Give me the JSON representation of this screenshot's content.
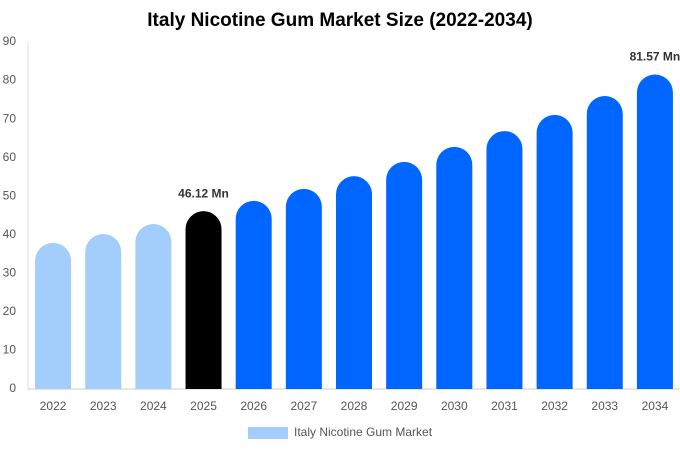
{
  "chart_data": {
    "type": "bar",
    "title": "Italy Nicotine Gum Market Size (2022-2034)",
    "categories": [
      "2022",
      "2023",
      "2024",
      "2025",
      "2026",
      "2027",
      "2028",
      "2029",
      "2030",
      "2031",
      "2032",
      "2033",
      "2034"
    ],
    "series": [
      {
        "name": "Italy Nicotine Gum Market",
        "color": "#a3cdfb",
        "colors": [
          "#a3cdfb",
          "#a3cdfb",
          "#a3cdfb",
          "#000000",
          "#0066ff",
          "#0066ff",
          "#0066ff",
          "#0066ff",
          "#0066ff",
          "#0066ff",
          "#0066ff",
          "#0066ff",
          "#0066ff"
        ],
        "values": [
          37.9,
          40.2,
          42.8,
          46.12,
          48.8,
          51.9,
          55.2,
          58.9,
          62.8,
          66.9,
          71.1,
          76.0,
          81.57
        ],
        "value_labels": [
          null,
          null,
          null,
          "46.12 Mn",
          null,
          null,
          null,
          null,
          null,
          null,
          null,
          null,
          "81.57 Mn"
        ]
      }
    ],
    "ylim": [
      0,
      90
    ],
    "yticks": [
      0,
      10,
      20,
      30,
      40,
      50,
      60,
      70,
      80,
      90
    ],
    "grid": false,
    "legend": "bottom"
  }
}
